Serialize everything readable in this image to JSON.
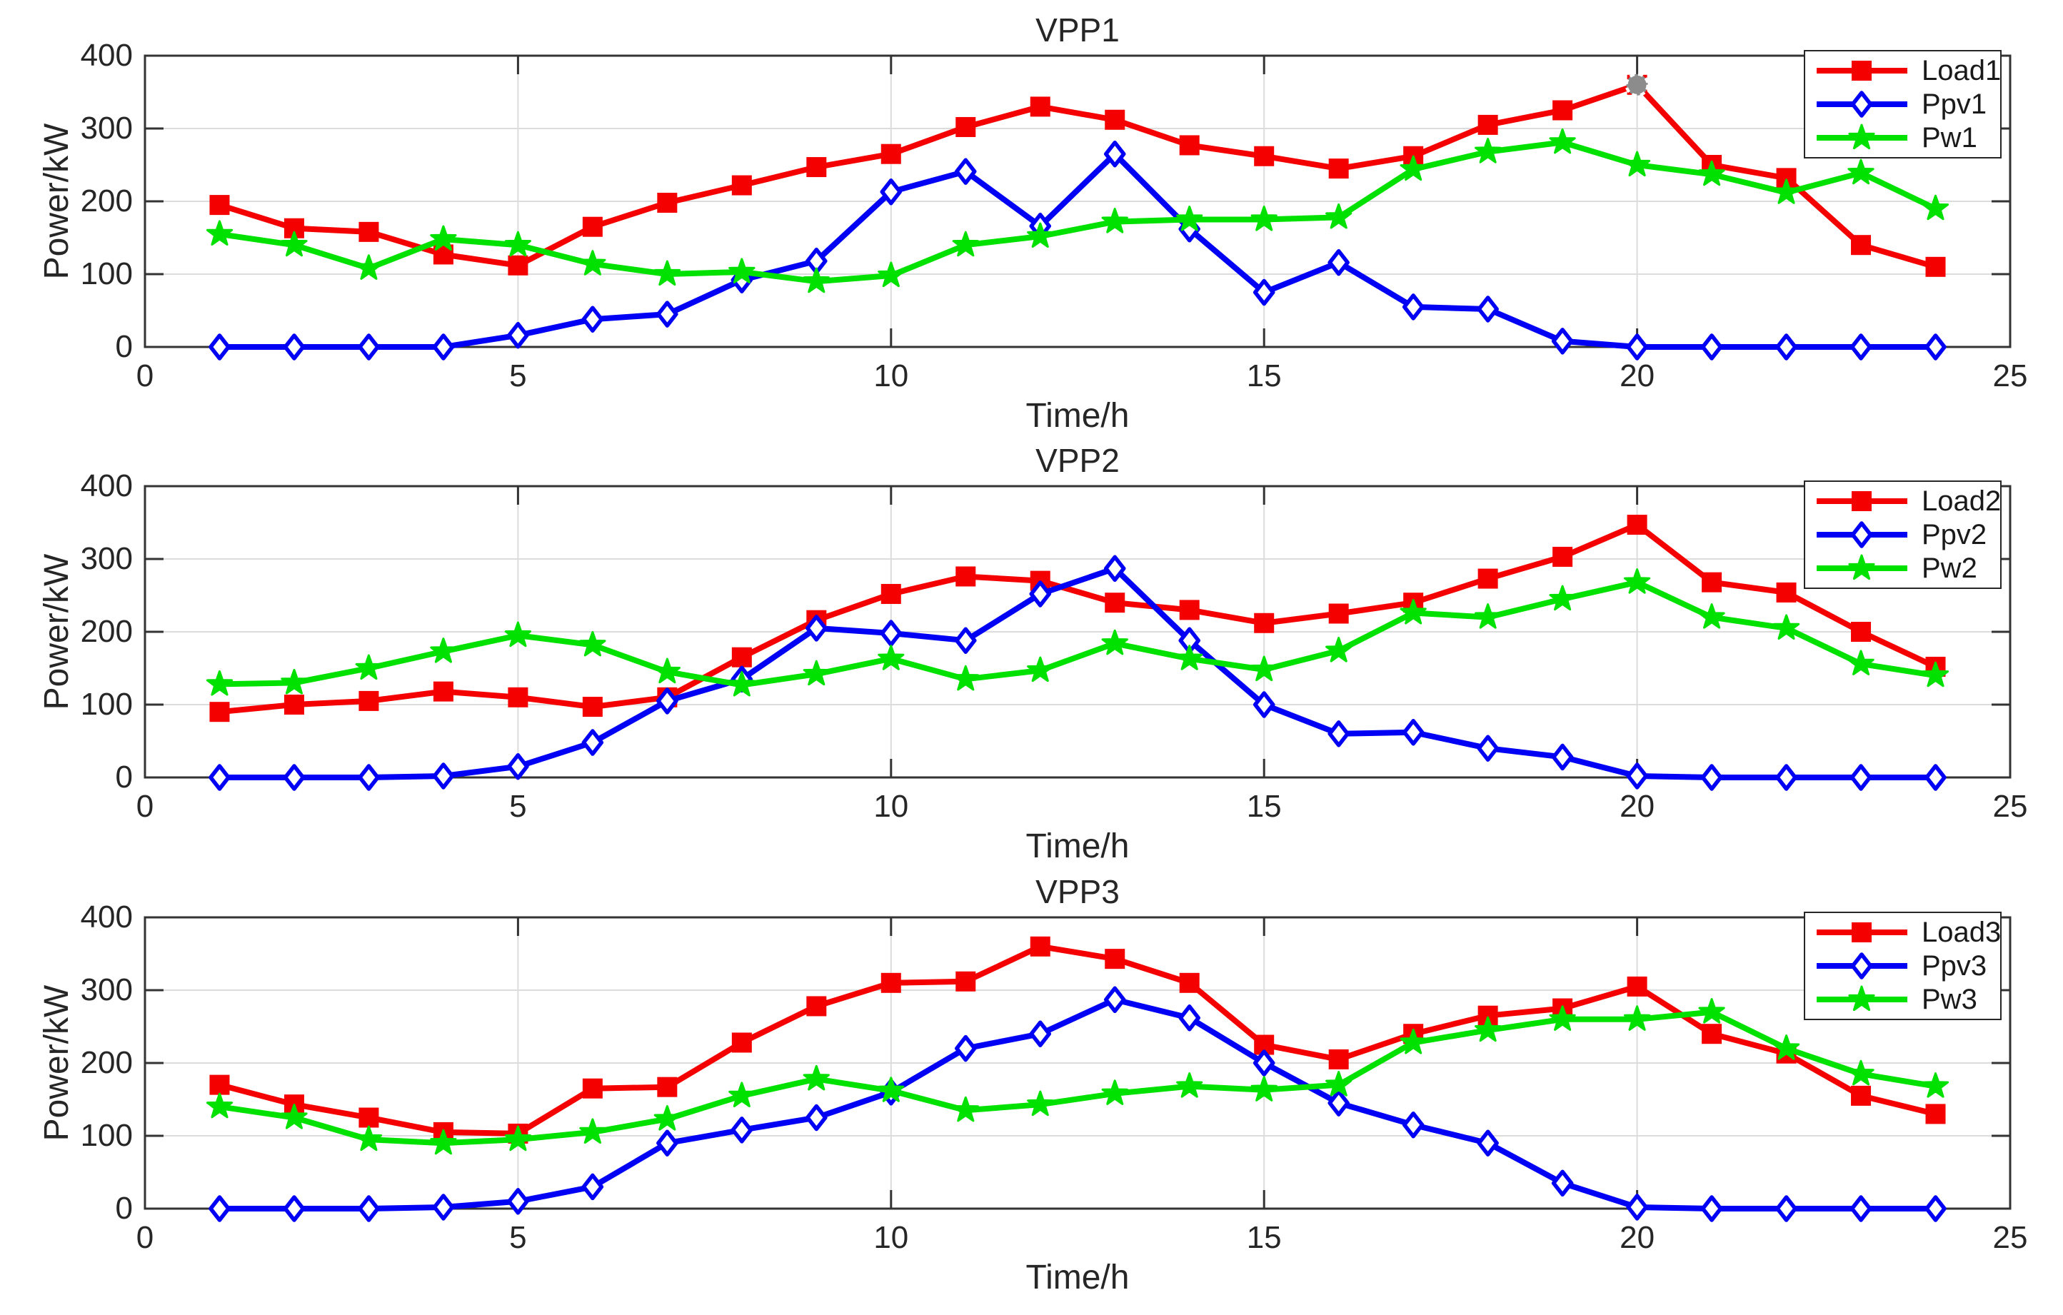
{
  "figure": {
    "background": "#ffffff",
    "text_color": "#262626",
    "axes_color": "#333333",
    "grid_color": "#dcdcdc",
    "highlight_marker_color": "#8c8c8c"
  },
  "chart_data": [
    {
      "type": "line",
      "title": "VPP1",
      "xlabel": "Time/h",
      "ylabel": "Power/kW",
      "xlim": [
        0,
        25
      ],
      "ylim": [
        0,
        400
      ],
      "xticks": [
        0,
        5,
        10,
        15,
        20,
        25
      ],
      "yticks": [
        0,
        100,
        200,
        300,
        400
      ],
      "grid": true,
      "legend_position": "top-right",
      "x": [
        1,
        2,
        3,
        4,
        5,
        6,
        7,
        8,
        9,
        10,
        11,
        12,
        13,
        14,
        15,
        16,
        17,
        18,
        19,
        20,
        21,
        22,
        23,
        24
      ],
      "series": [
        {
          "name": "Load1",
          "color": "#f50000",
          "marker": "square",
          "values": [
            195,
            163,
            158,
            127,
            112,
            165,
            198,
            222,
            247,
            265,
            302,
            330,
            312,
            277,
            262,
            245,
            262,
            305,
            325,
            360,
            250,
            232,
            140,
            110
          ]
        },
        {
          "name": "Ppv1",
          "color": "#0000f5",
          "marker": "diamond",
          "values": [
            0,
            0,
            0,
            0,
            16,
            38,
            45,
            92,
            118,
            213,
            241,
            166,
            265,
            162,
            75,
            116,
            55,
            52,
            8,
            0,
            0,
            0,
            0,
            0
          ]
        },
        {
          "name": "Pw1",
          "color": "#00e100",
          "marker": "star",
          "values": [
            155,
            140,
            108,
            148,
            140,
            114,
            100,
            103,
            90,
            98,
            140,
            152,
            172,
            175,
            175,
            178,
            244,
            268,
            281,
            250,
            237,
            212,
            239,
            190
          ]
        }
      ],
      "highlight_point": {
        "series": "Load1",
        "x": 20,
        "y": 360
      }
    },
    {
      "type": "line",
      "title": "VPP2",
      "xlabel": "Time/h",
      "ylabel": "Power/kW",
      "xlim": [
        0,
        25
      ],
      "ylim": [
        0,
        400
      ],
      "xticks": [
        0,
        5,
        10,
        15,
        20,
        25
      ],
      "yticks": [
        0,
        100,
        200,
        300,
        400
      ],
      "grid": true,
      "legend_position": "top-right",
      "x": [
        1,
        2,
        3,
        4,
        5,
        6,
        7,
        8,
        9,
        10,
        11,
        12,
        13,
        14,
        15,
        16,
        17,
        18,
        19,
        20,
        21,
        22,
        23,
        24
      ],
      "series": [
        {
          "name": "Load2",
          "color": "#f50000",
          "marker": "square",
          "values": [
            90,
            100,
            105,
            118,
            110,
            97,
            110,
            165,
            216,
            252,
            276,
            270,
            240,
            230,
            212,
            225,
            240,
            273,
            303,
            347,
            268,
            254,
            200,
            152
          ]
        },
        {
          "name": "Ppv2",
          "color": "#0000f5",
          "marker": "diamond",
          "values": [
            0,
            0,
            0,
            2,
            15,
            48,
            105,
            135,
            205,
            198,
            188,
            252,
            287,
            188,
            100,
            60,
            62,
            40,
            28,
            2,
            0,
            0,
            0,
            0
          ]
        },
        {
          "name": "Pw2",
          "color": "#00e100",
          "marker": "star",
          "values": [
            128,
            130,
            150,
            173,
            195,
            182,
            145,
            127,
            142,
            163,
            135,
            147,
            184,
            163,
            148,
            174,
            226,
            220,
            245,
            268,
            220,
            205,
            156,
            140
          ]
        }
      ]
    },
    {
      "type": "line",
      "title": "VPP3",
      "xlabel": "Time/h",
      "ylabel": "Power/kW",
      "xlim": [
        0,
        25
      ],
      "ylim": [
        0,
        400
      ],
      "xticks": [
        0,
        5,
        10,
        15,
        20,
        25
      ],
      "yticks": [
        0,
        100,
        200,
        300,
        400
      ],
      "grid": true,
      "legend_position": "top-right",
      "x": [
        1,
        2,
        3,
        4,
        5,
        6,
        7,
        8,
        9,
        10,
        11,
        12,
        13,
        14,
        15,
        16,
        17,
        18,
        19,
        20,
        21,
        22,
        23,
        24
      ],
      "series": [
        {
          "name": "Load3",
          "color": "#f50000",
          "marker": "square",
          "values": [
            170,
            143,
            125,
            105,
            103,
            165,
            167,
            228,
            278,
            310,
            312,
            360,
            343,
            310,
            225,
            205,
            240,
            265,
            275,
            305,
            240,
            213,
            155,
            130
          ]
        },
        {
          "name": "Ppv3",
          "color": "#0000f5",
          "marker": "diamond",
          "values": [
            0,
            0,
            0,
            2,
            10,
            30,
            90,
            108,
            125,
            160,
            220,
            240,
            287,
            262,
            200,
            145,
            115,
            90,
            35,
            2,
            0,
            0,
            0,
            0
          ]
        },
        {
          "name": "Pw3",
          "color": "#00e100",
          "marker": "star",
          "values": [
            140,
            125,
            95,
            90,
            95,
            105,
            123,
            155,
            178,
            162,
            135,
            143,
            158,
            168,
            163,
            170,
            228,
            245,
            260,
            260,
            270,
            220,
            185,
            168
          ]
        }
      ]
    }
  ]
}
